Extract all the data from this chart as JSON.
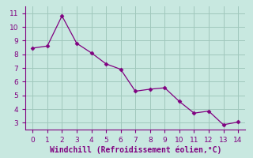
{
  "x": [
    0,
    1,
    2,
    3,
    4,
    5,
    6,
    7,
    8,
    9,
    10,
    11,
    12,
    13,
    14
  ],
  "y": [
    8.45,
    8.6,
    10.8,
    8.8,
    8.1,
    7.3,
    6.9,
    5.3,
    5.45,
    5.55,
    4.55,
    3.7,
    3.85,
    2.85,
    3.05
  ],
  "line_color": "#800080",
  "marker_color": "#800080",
  "bg_color": "#c8e8e0",
  "grid_color": "#a0c8bc",
  "xlabel": "Windchill (Refroidissement éolien,°C)",
  "xlabel_color": "#800080",
  "tick_color": "#800080",
  "spine_color": "#800080",
  "xlim": [
    -0.5,
    14.5
  ],
  "ylim": [
    2.5,
    11.5
  ],
  "yticks": [
    3,
    4,
    5,
    6,
    7,
    8,
    9,
    10,
    11
  ],
  "xticks": [
    0,
    1,
    2,
    3,
    4,
    5,
    6,
    7,
    8,
    9,
    10,
    11,
    12,
    13,
    14
  ],
  "tick_fontsize": 6.5,
  "xlabel_fontsize": 7
}
